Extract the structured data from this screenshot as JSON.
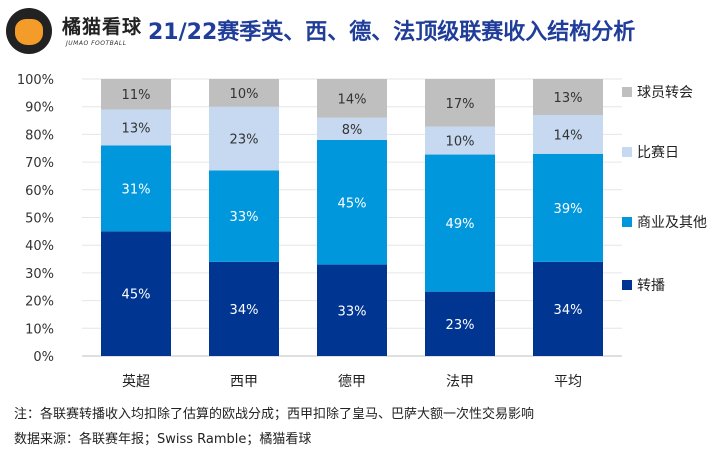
{
  "header": {
    "brand": "橘猫看球",
    "brand_sub": "JUMAO FOOTBALL",
    "title": "21/22赛季英、西、德、法顶级联赛收入结构分析"
  },
  "chart_data": {
    "type": "bar",
    "stacked": true,
    "title": "21/22赛季英、西、德、法顶级联赛收入结构分析",
    "categories": [
      "英超",
      "西甲",
      "德甲",
      "法甲",
      "平均"
    ],
    "series": [
      {
        "name": "转播",
        "color": "#003591",
        "label_color": "#ffffff",
        "values": [
          45,
          34,
          33,
          23,
          34
        ]
      },
      {
        "name": "商业及其他",
        "color": "#0097dc",
        "label_color": "#ffffff",
        "values": [
          31,
          33,
          45,
          49,
          39
        ]
      },
      {
        "name": "比赛日",
        "color": "#c6d9f0",
        "label_color": "#333333",
        "values": [
          13,
          23,
          8,
          10,
          14
        ]
      },
      {
        "name": "球员转会",
        "color": "#bfbfbf",
        "label_color": "#333333",
        "values": [
          11,
          10,
          14,
          17,
          13
        ]
      }
    ],
    "yticks": [
      "0%",
      "10%",
      "20%",
      "30%",
      "40%",
      "50%",
      "60%",
      "70%",
      "80%",
      "90%",
      "100%"
    ],
    "ylim": [
      0,
      100
    ],
    "xlabel": "",
    "ylabel": "",
    "legend": "right",
    "grid": true
  },
  "footer": {
    "note": "注：各联赛转播收入均扣除了估算的欧战分成；西甲扣除了皇马、巴萨大额一次性交易影响",
    "source": "数据来源：各联赛年报；Swiss Ramble；橘猫看球"
  }
}
